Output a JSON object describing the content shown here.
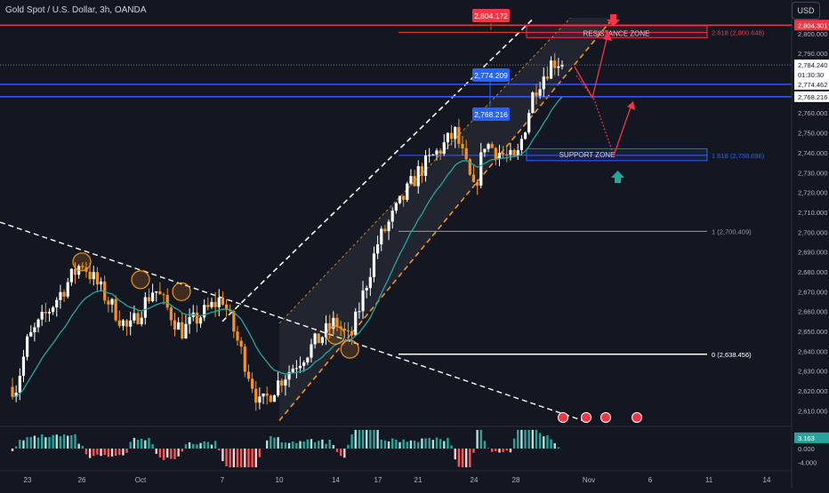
{
  "header": {
    "title": "Gold Spot / U.S. Dollar, 3h, OANDA",
    "currency_button": "USD"
  },
  "colors": {
    "background": "#131722",
    "bull": "#ffffff",
    "bear": "#f7931a",
    "ema": "#26a69a",
    "resistance": "#f23645",
    "support_blue": "#2962ff",
    "channel": "#f7931a",
    "text": "#d1d4dc"
  },
  "chart_data": {
    "type": "candlestick",
    "title": "Gold Spot / U.S. Dollar, 3h, OANDA",
    "ylim": [
      2603,
      2808
    ],
    "y_ticks": [
      2610,
      2620,
      2630,
      2640,
      2650,
      2660,
      2670,
      2680,
      2690,
      2700,
      2710,
      2720,
      2730,
      2740,
      2750,
      2760,
      2770,
      2780,
      2790,
      2800
    ],
    "x_tick_labels": [
      "23",
      "26",
      "Oct",
      "7",
      "10",
      "14",
      "17",
      "21",
      "24",
      "28",
      "Nov",
      "6",
      "11",
      "14"
    ],
    "approx_close_path": [
      {
        "date": "2024-09-20",
        "price": 2622
      },
      {
        "date": "2024-09-23",
        "price": 2645
      },
      {
        "date": "2024-09-26",
        "price": 2685
      },
      {
        "date": "2024-09-30",
        "price": 2650
      },
      {
        "date": "2024-10-02",
        "price": 2672
      },
      {
        "date": "2024-10-04",
        "price": 2650
      },
      {
        "date": "2024-10-07",
        "price": 2667
      },
      {
        "date": "2024-10-09",
        "price": 2612
      },
      {
        "date": "2024-10-10",
        "price": 2625
      },
      {
        "date": "2024-10-14",
        "price": 2655
      },
      {
        "date": "2024-10-15",
        "price": 2645
      },
      {
        "date": "2024-10-17",
        "price": 2695
      },
      {
        "date": "2024-10-21",
        "price": 2730
      },
      {
        "date": "2024-10-23",
        "price": 2750
      },
      {
        "date": "2024-10-24",
        "price": 2720
      },
      {
        "date": "2024-10-25",
        "price": 2745
      },
      {
        "date": "2024-10-28",
        "price": 2735
      },
      {
        "date": "2024-10-29",
        "price": 2772
      },
      {
        "date": "2024-10-30",
        "price": 2786
      }
    ],
    "horizontal_levels": [
      {
        "price": 2804.301,
        "label": "2,804.301"
      },
      {
        "price": 2774.462,
        "label": "2,774.462"
      },
      {
        "price": 2768.216,
        "label": "2,768.216"
      },
      {
        "price": 2700.409,
        "label": "1 (2,700.409)"
      },
      {
        "price": 2638.456,
        "label": "0 (2,638.456)"
      }
    ],
    "fib_labels": [
      {
        "price": 2800.648,
        "label": "2.618 (2,800.648)"
      },
      {
        "price": 2738.696,
        "label": "1.618 (2,738.696)"
      }
    ],
    "zones": [
      {
        "name": "RESISTANCE ZONE",
        "low": 2798,
        "high": 2804
      },
      {
        "name": "SUPPORT ZONE",
        "low": 2736,
        "high": 2742
      }
    ],
    "price_labels_on_chart": [
      "2,804.172",
      "2,774.209",
      "2,768.216"
    ],
    "axis_labels": {
      "current_price": "2,784.240",
      "countdown": "01:30:30",
      "level_2800": "2,800.000",
      "level_2790": "2,790.000",
      "level_2780": "2,780.000",
      "level_2770": "2,770.000",
      "level_2760": "2,760.000"
    },
    "oscillator": {
      "current_value": "3.163",
      "ticks": [
        "0.000",
        "-4.000"
      ],
      "ylim": [
        -6,
        6
      ]
    }
  }
}
